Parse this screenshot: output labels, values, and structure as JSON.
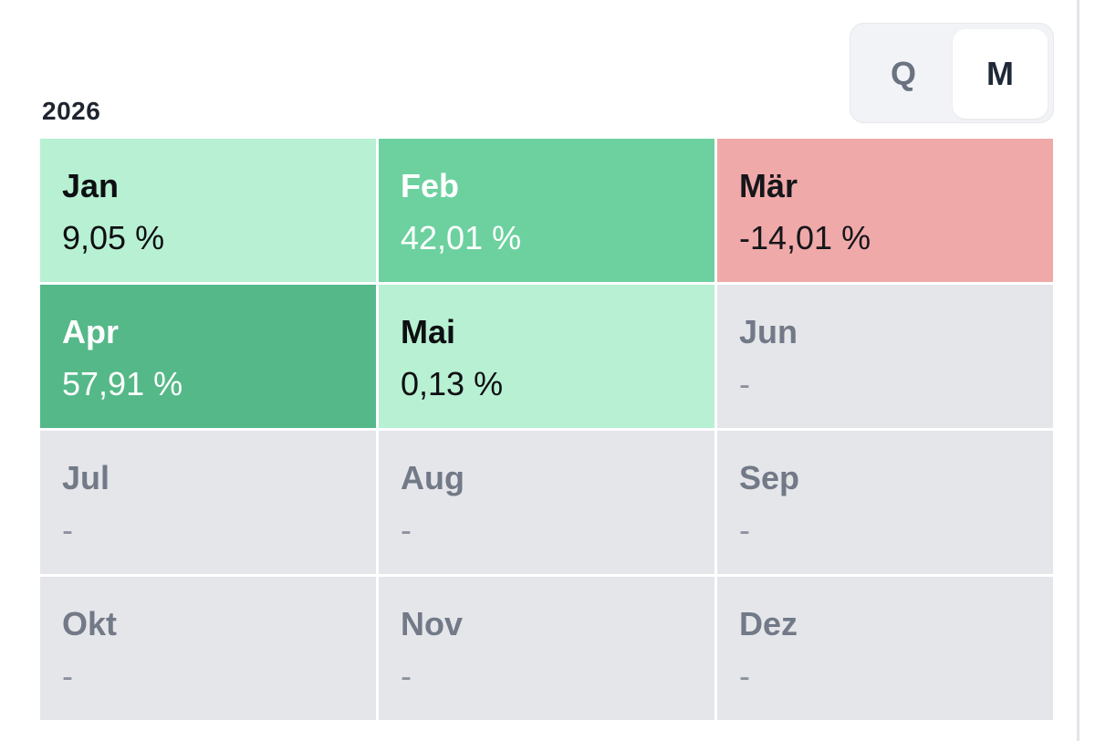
{
  "view_toggle": {
    "options": [
      {
        "label": "Q",
        "selected": false
      },
      {
        "label": "M",
        "selected": true
      }
    ]
  },
  "year": "2026",
  "months": [
    {
      "label": "Jan",
      "value": "9,05 %",
      "status": "light-green"
    },
    {
      "label": "Feb",
      "value": "42,01 %",
      "status": "mid-green"
    },
    {
      "label": "Mär",
      "value": "-14,01 %",
      "status": "red"
    },
    {
      "label": "Apr",
      "value": "57,91 %",
      "status": "dark-green"
    },
    {
      "label": "Mai",
      "value": "0,13 %",
      "status": "light-green"
    },
    {
      "label": "Jun",
      "value": "-",
      "status": "empty"
    },
    {
      "label": "Jul",
      "value": "-",
      "status": "empty"
    },
    {
      "label": "Aug",
      "value": "-",
      "status": "empty"
    },
    {
      "label": "Sep",
      "value": "-",
      "status": "empty"
    },
    {
      "label": "Okt",
      "value": "-",
      "status": "empty"
    },
    {
      "label": "Nov",
      "value": "-",
      "status": "empty"
    },
    {
      "label": "Dez",
      "value": "-",
      "status": "empty"
    }
  ],
  "colors": {
    "light_green": "#b7f0d2",
    "mid_green": "#6cd19f",
    "dark_green": "#55b888",
    "red": "#f0a9a9",
    "empty": "#e5e6ea"
  }
}
